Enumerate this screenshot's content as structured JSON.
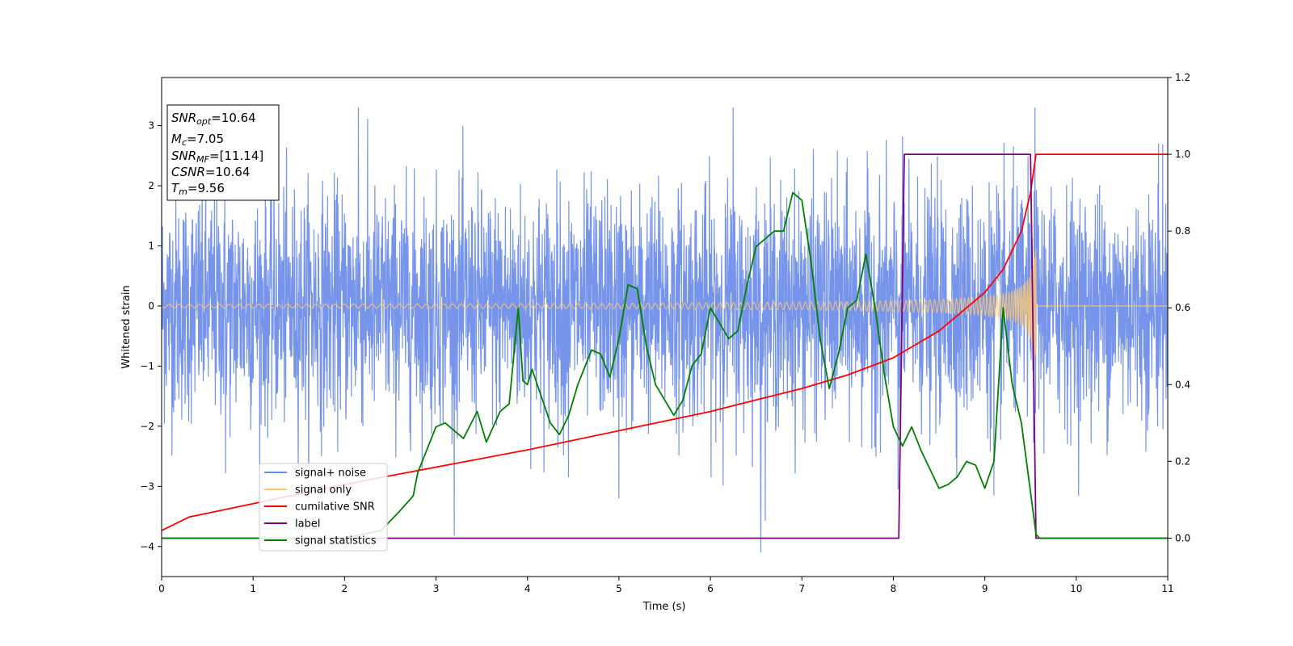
{
  "chart_data": {
    "type": "line",
    "xlabel": "Time (s)",
    "ylabel": "Whitened strain",
    "xlim": [
      0,
      11
    ],
    "ylim_left": [
      -4.5,
      3.8
    ],
    "ylim_right": [
      -0.1,
      1.2
    ],
    "xticks": [
      "0",
      "1",
      "2",
      "3",
      "4",
      "5",
      "6",
      "7",
      "8",
      "9",
      "10",
      "11"
    ],
    "yticks_left": [
      "3",
      "2",
      "1",
      "0",
      "−1",
      "−2",
      "−3",
      "−4"
    ],
    "yticks_right": [
      "1.2",
      "1.0",
      "0.8",
      "0.6",
      "0.4",
      "0.2",
      "0.0"
    ],
    "info_box": {
      "snr_opt": {
        "base": "SNR",
        "sub": "opt",
        "value": "=10.64"
      },
      "mc": {
        "base": "M",
        "sub": "c",
        "value": "=7.05"
      },
      "snr_mf": {
        "base": "SNR",
        "sub": "MF",
        "value": "=[11.14]"
      },
      "csnr": {
        "base": "CSNR",
        "value": "=10.64"
      },
      "tm": {
        "base": "T",
        "sub": "m",
        "value": "=9.56"
      }
    },
    "legend": {
      "position": "lower-left",
      "entries": [
        {
          "label": "signal+ noise",
          "color": "#6a8be8"
        },
        {
          "label": "signal only",
          "color": "#ffc870"
        },
        {
          "label": "cumilative SNR",
          "color": "#ff0000"
        },
        {
          "label": "label",
          "color": "#800080"
        },
        {
          "label": "signal statistics",
          "color": "#008000"
        }
      ]
    },
    "series": [
      {
        "name": "signal+ noise",
        "axis": "left",
        "color": "#6a8be8",
        "noise_std": 0.95,
        "x_range": [
          0,
          11
        ],
        "spikes": [
          [
            2.15,
            3.35
          ],
          [
            6.25,
            3.45
          ],
          [
            6.55,
            -4.15
          ],
          [
            9.55,
            3.3
          ],
          [
            5.0,
            -3.2
          ],
          [
            8.05,
            -3.05
          ],
          [
            9.1,
            -3.15
          ],
          [
            4.45,
            -2.85
          ],
          [
            0.7,
            -2.78
          ],
          [
            10.9,
            2.7
          ]
        ]
      },
      {
        "name": "signal only",
        "axis": "left",
        "color": "#ffc870",
        "t_merge": 9.56,
        "amplitude_start": 0.03,
        "amplitude_peak": 0.95
      },
      {
        "name": "cumilative SNR",
        "axis": "right",
        "color": "#ff0000",
        "x": [
          0,
          0.3,
          1,
          2,
          3,
          4,
          5,
          6,
          6.5,
          7,
          7.5,
          8,
          8.5,
          9,
          9.2,
          9.4,
          9.5,
          9.56,
          11
        ],
        "y": [
          0.02,
          0.055,
          0.09,
          0.14,
          0.185,
          0.23,
          0.28,
          0.33,
          0.36,
          0.39,
          0.425,
          0.47,
          0.54,
          0.64,
          0.7,
          0.8,
          0.9,
          1.0,
          1.0
        ]
      },
      {
        "name": "label",
        "axis": "right",
        "color": "#800080",
        "x": [
          0,
          8.06,
          8.12,
          9.5,
          9.56,
          11
        ],
        "y": [
          0.0,
          0.0,
          1.0,
          1.0,
          0.0,
          0.0
        ]
      },
      {
        "name": "signal statistics",
        "axis": "right",
        "color": "#008000",
        "x": [
          0,
          1,
          2,
          2.4,
          2.6,
          2.75,
          2.8,
          2.9,
          3.0,
          3.1,
          3.2,
          3.3,
          3.45,
          3.55,
          3.7,
          3.8,
          3.9,
          3.95,
          4.0,
          4.05,
          4.15,
          4.25,
          4.35,
          4.45,
          4.55,
          4.7,
          4.8,
          4.9,
          5.0,
          5.05,
          5.1,
          5.2,
          5.3,
          5.4,
          5.6,
          5.7,
          5.8,
          5.9,
          6.0,
          6.1,
          6.2,
          6.3,
          6.4,
          6.5,
          6.6,
          6.7,
          6.8,
          6.9,
          7.0,
          7.1,
          7.2,
          7.3,
          7.4,
          7.5,
          7.6,
          7.7,
          7.8,
          7.9,
          8.0,
          8.1,
          8.2,
          8.3,
          8.4,
          8.5,
          8.6,
          8.7,
          8.8,
          8.9,
          9.0,
          9.1,
          9.2,
          9.3,
          9.4,
          9.5,
          9.56,
          9.6,
          10,
          11
        ],
        "y": [
          0.0,
          0.0,
          0.0,
          0.02,
          0.07,
          0.11,
          0.17,
          0.23,
          0.29,
          0.3,
          0.28,
          0.26,
          0.33,
          0.25,
          0.33,
          0.35,
          0.6,
          0.41,
          0.4,
          0.44,
          0.37,
          0.3,
          0.27,
          0.32,
          0.4,
          0.49,
          0.48,
          0.42,
          0.52,
          0.59,
          0.66,
          0.65,
          0.5,
          0.4,
          0.32,
          0.36,
          0.45,
          0.48,
          0.6,
          0.56,
          0.52,
          0.54,
          0.66,
          0.76,
          0.78,
          0.8,
          0.8,
          0.9,
          0.88,
          0.72,
          0.52,
          0.39,
          0.48,
          0.6,
          0.62,
          0.74,
          0.6,
          0.43,
          0.29,
          0.24,
          0.29,
          0.23,
          0.18,
          0.13,
          0.14,
          0.16,
          0.2,
          0.19,
          0.13,
          0.2,
          0.6,
          0.4,
          0.3,
          0.12,
          0.01,
          0.0,
          0.0,
          0.0
        ]
      }
    ]
  }
}
